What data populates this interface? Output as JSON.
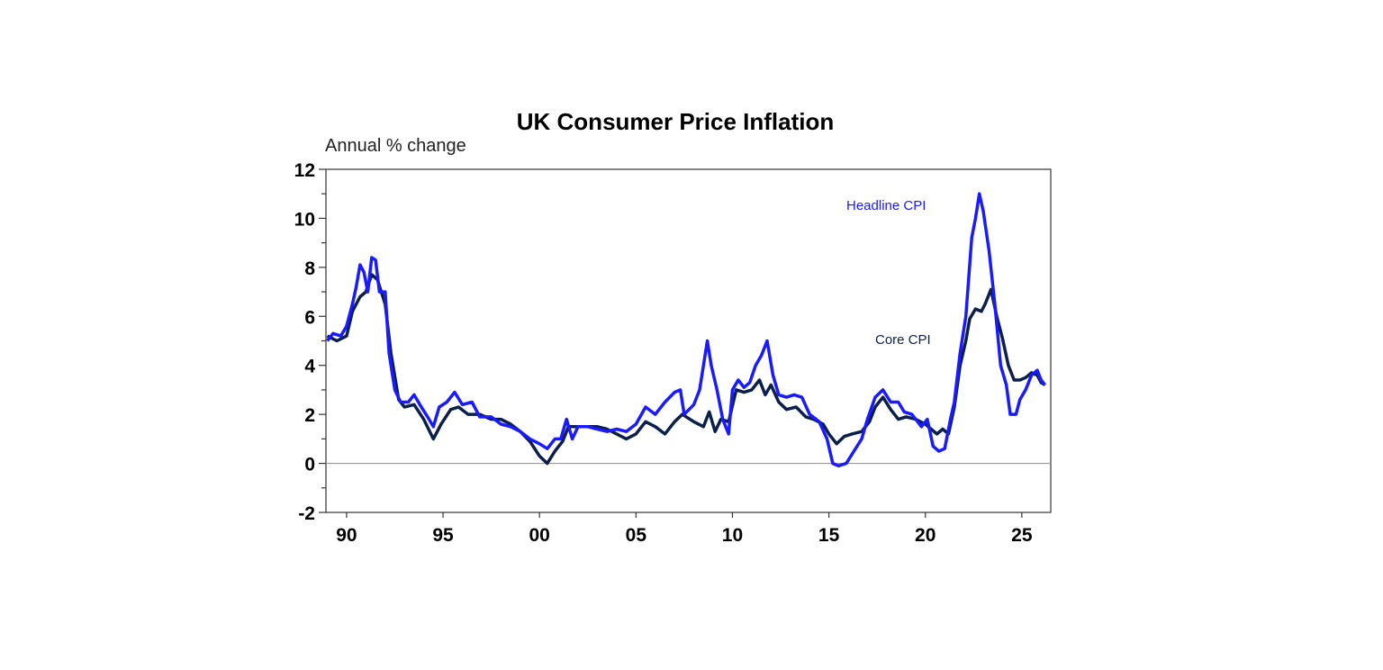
{
  "chart_data": {
    "type": "line",
    "title": "UK Consumer Price Inflation",
    "ylabel": "Annual % change",
    "xlabel": "",
    "xlim": [
      1988.93,
      2026.5
    ],
    "ylim": [
      -2,
      12
    ],
    "yticks": [
      -2,
      0,
      2,
      4,
      6,
      8,
      10,
      12
    ],
    "xticks": [
      {
        "value": 1990,
        "label": "90"
      },
      {
        "value": 1995,
        "label": "95"
      },
      {
        "value": 2000,
        "label": "00"
      },
      {
        "value": 2005,
        "label": "05"
      },
      {
        "value": 2010,
        "label": "10"
      },
      {
        "value": 2015,
        "label": "15"
      },
      {
        "value": 2020,
        "label": "20"
      },
      {
        "value": 2025,
        "label": "25"
      }
    ],
    "grid": false,
    "zero_line": true,
    "series": [
      {
        "name": "Headline CPI",
        "color": "#1a1aff",
        "x": [
          1989.0,
          1989.3,
          1989.7,
          1990.0,
          1990.3,
          1990.5,
          1990.7,
          1990.9,
          1991.1,
          1991.3,
          1991.5,
          1991.7,
          1992.0,
          1992.2,
          1992.5,
          1992.8,
          1993.2,
          1993.5,
          1993.8,
          1994.2,
          1994.5,
          1994.8,
          1995.2,
          1995.6,
          1996.0,
          1996.5,
          1996.9,
          1997.5,
          1998.0,
          1998.5,
          1999.0,
          1999.5,
          2000.0,
          2000.4,
          2000.8,
          2001.1,
          2001.4,
          2001.7,
          2002.0,
          2002.5,
          2003.0,
          2003.5,
          2004.0,
          2004.5,
          2005.0,
          2005.5,
          2006.0,
          2006.5,
          2007.0,
          2007.3,
          2007.5,
          2008.0,
          2008.3,
          2008.7,
          2008.9,
          2009.2,
          2009.5,
          2009.8,
          2010.0,
          2010.3,
          2010.6,
          2010.9,
          2011.2,
          2011.5,
          2011.8,
          2012.1,
          2012.4,
          2012.8,
          2013.2,
          2013.6,
          2014.0,
          2014.5,
          2014.9,
          2015.2,
          2015.5,
          2015.9,
          2016.3,
          2016.7,
          2017.0,
          2017.4,
          2017.8,
          2018.2,
          2018.6,
          2018.9,
          2019.3,
          2019.8,
          2020.1,
          2020.4,
          2020.7,
          2021.0,
          2021.3,
          2021.5,
          2021.8,
          2022.1,
          2022.4,
          2022.6,
          2022.8,
          2023.0,
          2023.3,
          2023.6,
          2023.9,
          2024.2,
          2024.4,
          2024.7,
          2024.9,
          2025.2,
          2025.5,
          2025.8,
          2026.0,
          2026.2
        ],
        "values": [
          5.0,
          5.3,
          5.2,
          5.6,
          6.5,
          7.2,
          8.1,
          7.8,
          7.0,
          8.4,
          8.3,
          7.0,
          7.0,
          4.5,
          3.0,
          2.5,
          2.5,
          2.8,
          2.4,
          1.9,
          1.5,
          2.3,
          2.5,
          2.9,
          2.4,
          2.5,
          1.9,
          1.9,
          1.6,
          1.5,
          1.3,
          1.0,
          0.8,
          0.6,
          1.0,
          1.0,
          1.8,
          1.0,
          1.5,
          1.5,
          1.4,
          1.3,
          1.4,
          1.3,
          1.6,
          2.3,
          2.0,
          2.5,
          2.9,
          3.0,
          2.0,
          2.4,
          3.0,
          5.0,
          4.0,
          3.0,
          1.8,
          1.2,
          3.0,
          3.4,
          3.1,
          3.3,
          4.0,
          4.4,
          5.0,
          3.6,
          2.8,
          2.7,
          2.8,
          2.7,
          2.0,
          1.7,
          1.0,
          0.0,
          -0.1,
          0.0,
          0.5,
          1.0,
          1.8,
          2.7,
          3.0,
          2.5,
          2.5,
          2.1,
          2.0,
          1.5,
          1.8,
          0.7,
          0.5,
          0.6,
          1.8,
          2.5,
          4.5,
          6.0,
          9.2,
          10.0,
          11.0,
          10.3,
          8.7,
          6.5,
          4.0,
          3.2,
          2.0,
          2.0,
          2.6,
          3.0,
          3.6,
          3.8,
          3.4,
          3.2
        ]
      },
      {
        "name": "Core CPI",
        "color": "#0b1f4a",
        "x": [
          1989.0,
          1989.5,
          1990.0,
          1990.3,
          1990.7,
          1991.0,
          1991.3,
          1991.6,
          1992.0,
          1992.3,
          1992.7,
          1993.0,
          1993.5,
          1994.0,
          1994.5,
          1994.9,
          1995.4,
          1995.8,
          1996.3,
          1996.9,
          1997.5,
          1998.0,
          1998.5,
          1999.0,
          1999.5,
          2000.0,
          2000.4,
          2000.8,
          2001.2,
          2001.5,
          2002.0,
          2002.5,
          2003.0,
          2003.5,
          2004.0,
          2004.5,
          2005.0,
          2005.5,
          2006.0,
          2006.5,
          2007.0,
          2007.4,
          2008.0,
          2008.5,
          2008.8,
          2009.1,
          2009.4,
          2009.8,
          2010.2,
          2010.6,
          2011.0,
          2011.4,
          2011.7,
          2012.0,
          2012.4,
          2012.8,
          2013.3,
          2013.8,
          2014.2,
          2014.7,
          2015.0,
          2015.4,
          2015.8,
          2016.2,
          2016.7,
          2017.1,
          2017.4,
          2017.8,
          2018.2,
          2018.6,
          2019.0,
          2019.5,
          2020.0,
          2020.3,
          2020.6,
          2020.9,
          2021.2,
          2021.5,
          2021.8,
          2022.1,
          2022.3,
          2022.6,
          2022.9,
          2023.1,
          2023.4,
          2023.7,
          2024.0,
          2024.3,
          2024.6,
          2024.9,
          2025.2,
          2025.5,
          2025.8,
          2026.0,
          2026.2
        ],
        "values": [
          5.2,
          5.0,
          5.2,
          6.2,
          6.8,
          7.0,
          7.7,
          7.5,
          6.5,
          4.5,
          2.6,
          2.3,
          2.4,
          1.8,
          1.0,
          1.6,
          2.2,
          2.3,
          2.0,
          2.0,
          1.8,
          1.8,
          1.6,
          1.3,
          0.9,
          0.3,
          0.0,
          0.5,
          0.9,
          1.5,
          1.5,
          1.5,
          1.5,
          1.4,
          1.2,
          1.0,
          1.2,
          1.7,
          1.5,
          1.2,
          1.7,
          2.0,
          1.7,
          1.5,
          2.1,
          1.3,
          1.8,
          1.7,
          3.0,
          2.9,
          3.0,
          3.4,
          2.8,
          3.2,
          2.5,
          2.2,
          2.3,
          1.9,
          1.8,
          1.6,
          1.2,
          0.8,
          1.1,
          1.2,
          1.3,
          1.7,
          2.3,
          2.7,
          2.2,
          1.8,
          1.9,
          1.8,
          1.6,
          1.4,
          1.2,
          1.4,
          1.2,
          2.3,
          4.0,
          5.0,
          5.9,
          6.3,
          6.2,
          6.5,
          7.1,
          6.0,
          5.1,
          4.0,
          3.4,
          3.4,
          3.5,
          3.7,
          3.6,
          3.3,
          3.2
        ]
      }
    ],
    "annotations": [
      {
        "text": "Headline CPI",
        "series": "Headline CPI"
      },
      {
        "text": "Core CPI",
        "series": "Core CPI"
      }
    ]
  }
}
